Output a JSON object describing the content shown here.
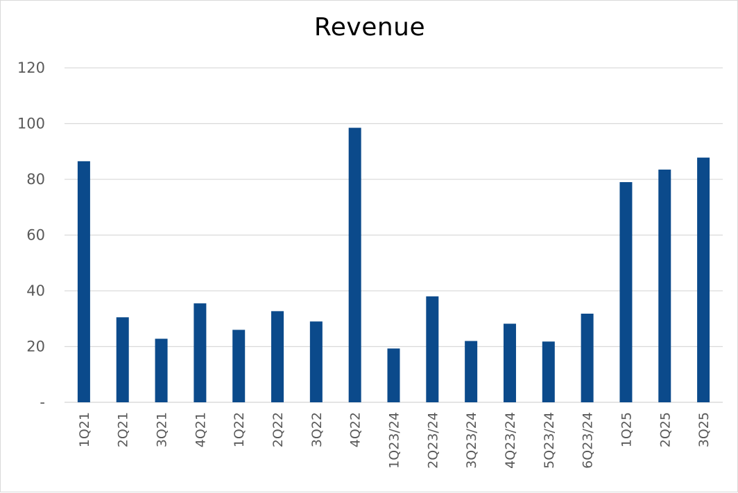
{
  "chart_data": {
    "type": "bar",
    "title": "Revenue",
    "xlabel": "",
    "ylabel": "",
    "categories": [
      "1Q21",
      "2Q21",
      "3Q21",
      "4Q21",
      "1Q22",
      "2Q22",
      "3Q22",
      "4Q22",
      "1Q23/24",
      "2Q23/24",
      "3Q23/24",
      "4Q23/24",
      "5Q23/24",
      "6Q23/24",
      "1Q25",
      "2Q25",
      "3Q25"
    ],
    "values": [
      86.5,
      30.5,
      22.8,
      35.5,
      26,
      32.7,
      29,
      98.5,
      19.3,
      38,
      22,
      28.2,
      21.8,
      31.8,
      79,
      83.5,
      87.8
    ],
    "ylim": [
      0,
      120
    ],
    "yticks": [
      0,
      20,
      40,
      60,
      80,
      100,
      120
    ],
    "ytick_labels": [
      "-",
      "20",
      "40",
      "60",
      "80",
      "100",
      "120"
    ],
    "grid": true,
    "legend": "none",
    "bar_color": "#0b4a8b",
    "grid_color": "#d9d9d9"
  }
}
